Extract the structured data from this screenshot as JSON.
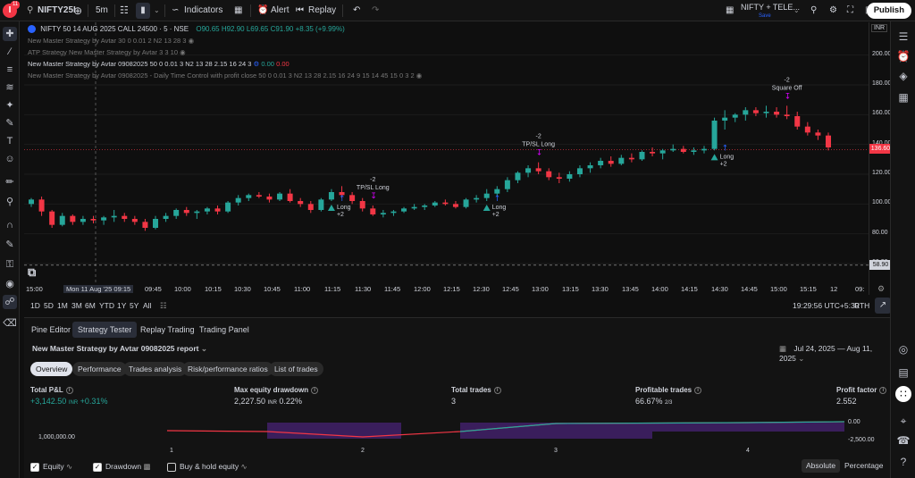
{
  "topbar": {
    "symbol": "NIFTY25I",
    "interval": "5m",
    "indicators": "Indicators",
    "alert": "Alert",
    "replay": "Replay",
    "layout_name": "NIFTY + TELE...",
    "layout_sub": "Save",
    "publish": "Publish",
    "notif_count": "11"
  },
  "chart": {
    "title": "NIFTY 50 14 AUG 2025 CALL 24500 · 5 · NSE",
    "ohlc": {
      "o": "O90.65",
      "h": "H92.90",
      "l": "L69.65",
      "c": "C91.90",
      "chg": "+8.35 (+9.99%)"
    },
    "legend_lines": [
      "New Master Strategy by Avtar 30 0 0.01 2 N2 13 28 3",
      "ATP Strategy New Master Strategy by Avtar 3 3 10",
      "New Master Strategy by Avtar 09082025 50 0 0.01 3 N2 13 28 2.15 16 24 3",
      "New Master Strategy by Avtar 09082025 - Daily Time Control with profit close 50 0 0.01 3 N2 13 28 2.15 16 24 9 15 14 45 15 0 3 2"
    ],
    "legend_values": {
      "v1": "0.00",
      "v2": "0.00"
    },
    "currency": "INR",
    "price_ticks": [
      "200.00",
      "180.00",
      "160.00",
      "140.00",
      "120.00",
      "100.00",
      "80.00",
      "60.00"
    ],
    "price_tick_values": [
      200,
      180,
      160,
      140,
      120,
      100,
      80,
      60
    ],
    "price_min": 48,
    "price_max": 210,
    "current_price": "136.60",
    "current_price_value": 136.6,
    "low_price": "58.90",
    "low_price_value": 58.9,
    "time_ticks": [
      "15:00",
      "Mon 11 Aug '25  09:15",
      "09:45",
      "10:00",
      "10:15",
      "10:30",
      "10:45",
      "11:00",
      "11:15",
      "11:30",
      "11:45",
      "12:00",
      "12:15",
      "12:30",
      "12:45",
      "13:00",
      "13:15",
      "13:30",
      "13:45",
      "14:00",
      "14:15",
      "14:30",
      "14:45",
      "15:00",
      "15:15",
      "12",
      "09:"
    ],
    "annotations": [
      {
        "text": "Long",
        "sub": "+2",
        "type": "long",
        "candle": 29
      },
      {
        "text": "-2",
        "sub": "TP/SL Long",
        "type": "exit",
        "candle": 33
      },
      {
        "text": "Long",
        "sub": "+2",
        "type": "long",
        "candle": 44
      },
      {
        "text": "-2",
        "sub": "TP/SL Long",
        "type": "exit",
        "candle": 49
      },
      {
        "text": "Long",
        "sub": "+2",
        "type": "long",
        "candle": 66
      },
      {
        "text": "-2",
        "sub": "Square Off",
        "type": "exit",
        "candle": 73
      }
    ],
    "candles": [
      [
        100,
        104,
        98,
        103
      ],
      [
        103,
        105,
        92,
        95
      ],
      [
        95,
        96,
        84,
        86
      ],
      [
        86,
        94,
        85,
        92
      ],
      [
        92,
        93,
        86,
        88
      ],
      [
        88,
        92,
        86,
        90
      ],
      [
        90,
        92,
        87,
        89
      ],
      [
        89,
        92,
        86,
        91
      ],
      [
        91,
        96,
        88,
        92
      ],
      [
        92,
        94,
        88,
        90
      ],
      [
        90,
        92,
        86,
        88
      ],
      [
        88,
        90,
        82,
        84
      ],
      [
        84,
        92,
        83,
        90
      ],
      [
        90,
        94,
        88,
        92
      ],
      [
        92,
        97,
        90,
        96
      ],
      [
        96,
        98,
        92,
        94
      ],
      [
        94,
        96,
        90,
        95
      ],
      [
        95,
        98,
        93,
        97
      ],
      [
        97,
        99,
        93,
        95
      ],
      [
        95,
        102,
        94,
        101
      ],
      [
        101,
        106,
        99,
        104
      ],
      [
        104,
        107,
        102,
        106
      ],
      [
        106,
        108,
        104,
        105
      ],
      [
        105,
        107,
        101,
        103
      ],
      [
        103,
        108,
        102,
        107
      ],
      [
        107,
        110,
        101,
        102
      ],
      [
        102,
        104,
        98,
        100
      ],
      [
        100,
        102,
        94,
        96
      ],
      [
        96,
        104,
        95,
        103
      ],
      [
        103,
        110,
        102,
        108
      ],
      [
        108,
        112,
        104,
        106
      ],
      [
        106,
        108,
        100,
        102
      ],
      [
        102,
        104,
        95,
        97
      ],
      [
        97,
        99,
        92,
        93
      ],
      [
        93,
        96,
        91,
        94
      ],
      [
        94,
        96,
        92,
        95
      ],
      [
        95,
        98,
        94,
        97
      ],
      [
        97,
        100,
        96,
        98
      ],
      [
        98,
        100,
        96,
        99
      ],
      [
        99,
        102,
        98,
        101
      ],
      [
        101,
        103,
        99,
        100
      ],
      [
        100,
        102,
        97,
        98
      ],
      [
        98,
        104,
        97,
        103
      ],
      [
        103,
        106,
        101,
        104
      ],
      [
        104,
        110,
        102,
        107
      ],
      [
        107,
        112,
        105,
        110
      ],
      [
        110,
        118,
        108,
        116
      ],
      [
        116,
        122,
        114,
        121
      ],
      [
        121,
        126,
        118,
        124
      ],
      [
        124,
        128,
        120,
        122
      ],
      [
        122,
        124,
        116,
        118
      ],
      [
        118,
        121,
        114,
        117
      ],
      [
        117,
        122,
        115,
        120
      ],
      [
        120,
        126,
        118,
        124
      ],
      [
        124,
        128,
        121,
        126
      ],
      [
        126,
        131,
        124,
        129
      ],
      [
        129,
        132,
        125,
        127
      ],
      [
        127,
        133,
        126,
        131
      ],
      [
        131,
        134,
        128,
        130
      ],
      [
        130,
        136,
        129,
        135
      ],
      [
        135,
        138,
        132,
        134
      ],
      [
        134,
        137,
        130,
        136
      ],
      [
        136,
        140,
        135,
        137
      ],
      [
        137,
        139,
        134,
        135
      ],
      [
        135,
        138,
        133,
        136
      ],
      [
        136,
        139,
        134,
        137
      ],
      [
        137,
        158,
        136,
        156
      ],
      [
        156,
        163,
        150,
        158
      ],
      [
        158,
        161,
        155,
        160
      ],
      [
        160,
        165,
        156,
        163
      ],
      [
        163,
        165,
        159,
        161
      ],
      [
        161,
        166,
        158,
        162
      ],
      [
        162,
        165,
        158,
        160
      ],
      [
        160,
        166,
        157,
        159
      ],
      [
        159,
        162,
        150,
        152
      ],
      [
        152,
        155,
        146,
        148
      ],
      [
        148,
        150,
        143,
        146
      ],
      [
        146,
        148,
        136,
        138
      ]
    ]
  },
  "timeframes": [
    "1D",
    "5D",
    "1M",
    "3M",
    "6M",
    "YTD",
    "1Y",
    "5Y",
    "All"
  ],
  "clock": "19:29:56 UTC+5:30",
  "rth": "RTH",
  "bottom": {
    "tabs": [
      "Pine Editor",
      "Strategy Tester",
      "Replay Trading",
      "Trading Panel"
    ],
    "report_title": "New Master Strategy by Avtar 09082025 report",
    "date_range": "Jul 24, 2025 — Aug 11, 2025",
    "subtabs": [
      "Overview",
      "Performance",
      "Trades analysis",
      "Risk/performance ratios",
      "List of trades"
    ],
    "metrics": [
      {
        "label": "Total P&L",
        "value": "+3,142.50",
        "unit": "INR",
        "extra": "+0.31%",
        "color": "#26a69a"
      },
      {
        "label": "Max equity drawdown",
        "value": "2,227.50",
        "unit": "INR",
        "extra": "0.22%",
        "color": "#d1d4dc"
      },
      {
        "label": "Total trades",
        "value": "3",
        "unit": "",
        "extra": "",
        "color": "#d1d4dc"
      },
      {
        "label": "Profitable trades",
        "value": "66.67%",
        "unit": "",
        "extra": "2/3",
        "color": "#d1d4dc"
      },
      {
        "label": "Profit factor",
        "value": "2.552",
        "unit": "",
        "extra": "",
        "color": "#d1d4dc"
      }
    ],
    "equity_axis_left": "1,000,000.00",
    "equity_axis_right_top": "0.00",
    "equity_axis_right_bottom": "-2,500.00",
    "equity_x_ticks": [
      "1",
      "2",
      "3",
      "4"
    ],
    "checks": [
      {
        "label": "Equity",
        "checked": true
      },
      {
        "label": "Drawdown",
        "checked": true
      },
      {
        "label": "Buy & hold equity",
        "checked": false
      }
    ],
    "mode_absolute": "Absolute",
    "mode_percentage": "Percentage"
  },
  "colors": {
    "up": "#26a69a",
    "down": "#f23645",
    "accent": "#2962ff"
  }
}
